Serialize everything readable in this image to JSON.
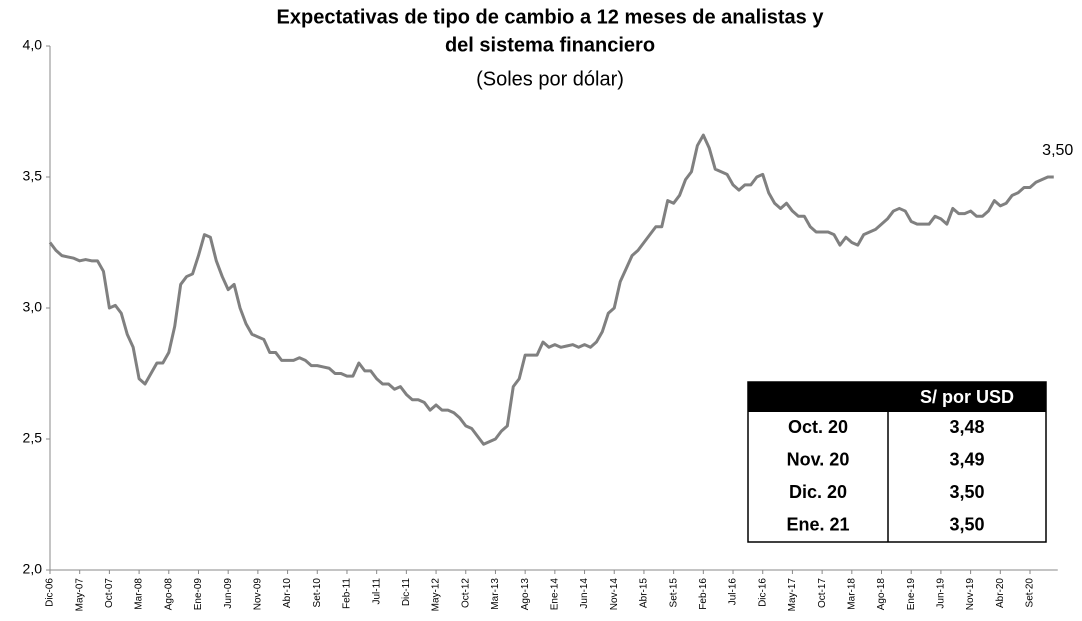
{
  "chart_data": {
    "type": "line",
    "title": [
      "Expectativas de tipo de cambio a 12 meses de analistas y",
      "del sistema financiero"
    ],
    "subtitle": "(Soles por dólar)",
    "categories": [
      "Dic-06",
      null,
      null,
      null,
      null,
      "May-07",
      null,
      null,
      null,
      null,
      "Oct-07",
      null,
      null,
      null,
      null,
      "Mar-08",
      null,
      null,
      null,
      null,
      "Ago-08",
      null,
      null,
      null,
      null,
      "Ene-09",
      null,
      null,
      null,
      null,
      "Jun-09",
      null,
      null,
      null,
      null,
      "Nov-09",
      null,
      null,
      null,
      null,
      "Abr-10",
      null,
      null,
      null,
      null,
      "Set-10",
      null,
      null,
      null,
      null,
      "Feb-11",
      null,
      null,
      null,
      null,
      "Jul-11",
      null,
      null,
      null,
      null,
      "Dic-11",
      null,
      null,
      null,
      null,
      "May-12",
      null,
      null,
      null,
      null,
      "Oct-12",
      null,
      null,
      null,
      null,
      "Mar-13",
      null,
      null,
      null,
      null,
      "Ago-13",
      null,
      null,
      null,
      null,
      "Ene-14",
      null,
      null,
      null,
      null,
      "Jun-14",
      null,
      null,
      null,
      null,
      "Nov-14",
      null,
      null,
      null,
      null,
      "Abr-15",
      null,
      null,
      null,
      null,
      "Set-15",
      null,
      null,
      null,
      null,
      "Feb-16",
      null,
      null,
      null,
      null,
      "Jul-16",
      null,
      null,
      null,
      null,
      "Dic-16",
      null,
      null,
      null,
      null,
      "May-17",
      null,
      null,
      null,
      null,
      "Oct-17",
      null,
      null,
      null,
      null,
      "Mar-18",
      null,
      null,
      null,
      null,
      "Ago-18",
      null,
      null,
      null,
      null,
      "Ene-19",
      null,
      null,
      null,
      null,
      "Jun-19",
      null,
      null,
      null,
      null,
      "Nov-19",
      null,
      null,
      null,
      null,
      "Abr-20",
      null,
      null,
      null,
      null,
      "Set-20",
      null,
      null,
      null,
      null
    ],
    "values": [
      3.25,
      3.22,
      3.2,
      3.195,
      3.19,
      3.18,
      3.185,
      3.18,
      3.18,
      3.14,
      3.0,
      3.01,
      2.98,
      2.9,
      2.85,
      2.73,
      2.71,
      2.75,
      2.79,
      2.79,
      2.83,
      2.93,
      3.09,
      3.12,
      3.13,
      3.2,
      3.28,
      3.27,
      3.18,
      3.12,
      3.07,
      3.09,
      3.0,
      2.94,
      2.9,
      2.89,
      2.88,
      2.83,
      2.83,
      2.8,
      2.8,
      2.8,
      2.81,
      2.8,
      2.78,
      2.78,
      2.775,
      2.77,
      2.75,
      2.75,
      2.74,
      2.74,
      2.79,
      2.76,
      2.76,
      2.73,
      2.71,
      2.71,
      2.69,
      2.7,
      2.67,
      2.65,
      2.65,
      2.64,
      2.61,
      2.63,
      2.61,
      2.61,
      2.6,
      2.58,
      2.55,
      2.54,
      2.51,
      2.48,
      2.49,
      2.5,
      2.53,
      2.55,
      2.7,
      2.73,
      2.82,
      2.82,
      2.82,
      2.87,
      2.85,
      2.86,
      2.85,
      2.855,
      2.86,
      2.85,
      2.86,
      2.85,
      2.87,
      2.91,
      2.98,
      3.0,
      3.1,
      3.15,
      3.2,
      3.22,
      3.25,
      3.28,
      3.31,
      3.31,
      3.41,
      3.4,
      3.43,
      3.49,
      3.52,
      3.62,
      3.66,
      3.61,
      3.53,
      3.52,
      3.51,
      3.47,
      3.45,
      3.47,
      3.47,
      3.5,
      3.51,
      3.44,
      3.4,
      3.38,
      3.4,
      3.37,
      3.35,
      3.35,
      3.31,
      3.29,
      3.29,
      3.29,
      3.28,
      3.24,
      3.27,
      3.25,
      3.24,
      3.28,
      3.29,
      3.3,
      3.32,
      3.34,
      3.37,
      3.38,
      3.37,
      3.33,
      3.32,
      3.32,
      3.32,
      3.35,
      3.34,
      3.32,
      3.38,
      3.36,
      3.36,
      3.37,
      3.35,
      3.35,
      3.37,
      3.41,
      3.39,
      3.4,
      3.43,
      3.44,
      3.46,
      3.46,
      3.48,
      3.49,
      3.5,
      3.5
    ],
    "last_label": "3,50",
    "color": "#808080",
    "ylim": [
      2.0,
      4.0
    ],
    "yticks": [
      {
        "value": 2.0,
        "label": "2,0"
      },
      {
        "value": 2.5,
        "label": "2,5"
      },
      {
        "value": 3.0,
        "label": "3,0"
      },
      {
        "value": 3.5,
        "label": "3,5"
      },
      {
        "value": 4.0,
        "label": "4,0"
      }
    ],
    "grid": false,
    "table": {
      "column_header": "S/ por USD",
      "rows": [
        [
          "Oct. 20",
          "3,48"
        ],
        [
          "Nov. 20",
          "3,49"
        ],
        [
          "Dic. 20",
          "3,50"
        ],
        [
          "Ene. 21",
          "3,50"
        ]
      ]
    }
  }
}
